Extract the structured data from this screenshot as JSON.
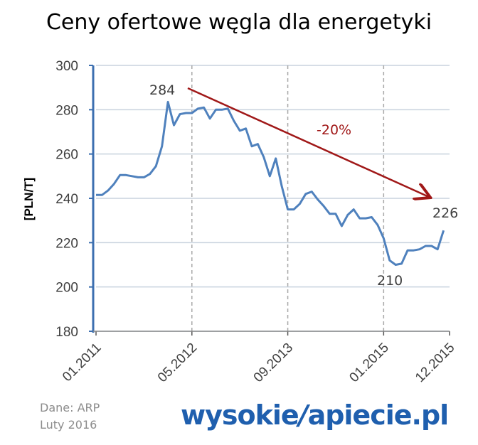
{
  "title": "Ceny ofertowe węgla dla energetyki",
  "source": {
    "line1": "Dane: ARP",
    "line2": "Luty 2016"
  },
  "logo": {
    "part1": "wysokie",
    "separator": "/",
    "part2": "apiecie.pl"
  },
  "colors": {
    "line": "#4f81bd",
    "arrow": "#a01818",
    "grid": "#c8d2de",
    "dashed": "#a8a8a8",
    "axis": "#3c6fb0"
  },
  "chart_data": {
    "type": "line",
    "ylabel": "[PLN/T]",
    "ylim": [
      180,
      300
    ],
    "yticks": [
      "180",
      "200",
      "220",
      "240",
      "260",
      "280",
      "300"
    ],
    "xlim": [
      0,
      59
    ],
    "xticks": [
      {
        "label": "01.2011",
        "x": 0
      },
      {
        "label": "05.2012",
        "x": 16
      },
      {
        "label": "09.2013",
        "x": 32
      },
      {
        "label": "01.2015",
        "x": 48
      },
      {
        "label": "12.2015",
        "x": 59
      }
    ],
    "grid": true,
    "series": [
      {
        "values": [
          241.5,
          241.5,
          243.5,
          246.5,
          250.5,
          250.5,
          250,
          249.5,
          249.5,
          251,
          254.5,
          263.5,
          283.5,
          273,
          278,
          278.5,
          278.5,
          280.5,
          281,
          276,
          280,
          280,
          280.5,
          275,
          270.5,
          271.5,
          263.5,
          264.5,
          258.5,
          250,
          258,
          245.5,
          235,
          235,
          237.5,
          242,
          243,
          239.5,
          236.5,
          233,
          233,
          227.5,
          232.5,
          235,
          231,
          231,
          231.5,
          228,
          222,
          212,
          210,
          210.5,
          216.5,
          216.5,
          217,
          218.5,
          218.5,
          217,
          225.5
        ]
      }
    ],
    "annotations": {
      "peak": "284",
      "change": "-20%",
      "end": "226",
      "low": "210"
    }
  }
}
